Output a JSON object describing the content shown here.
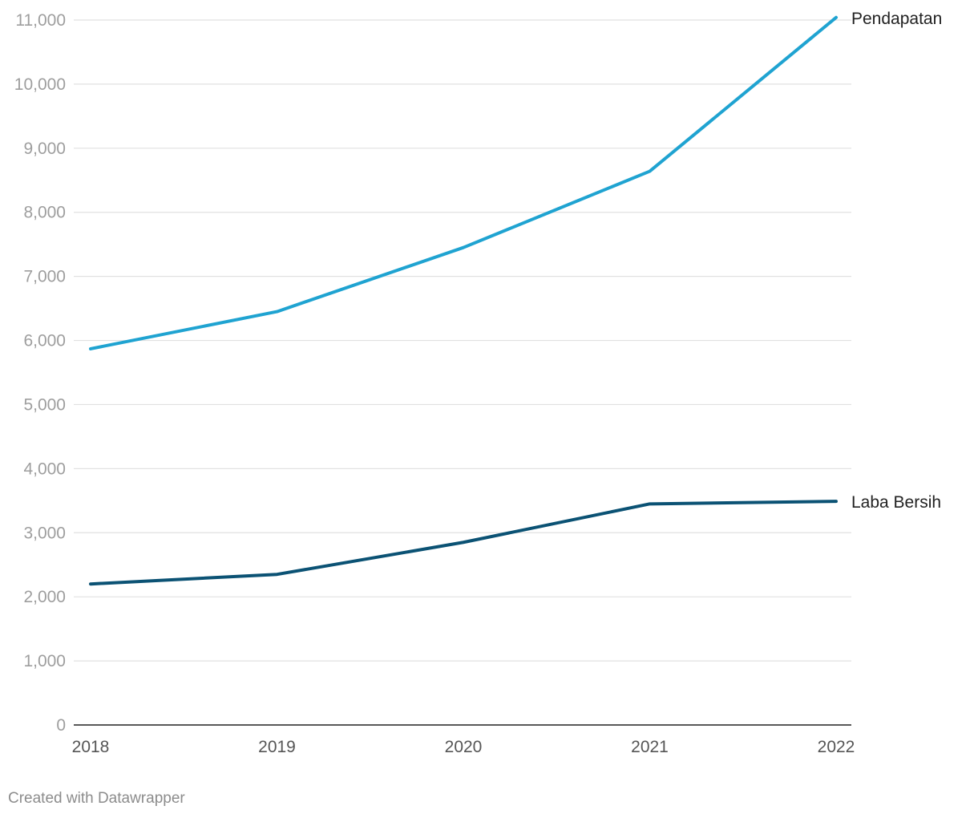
{
  "chart_data": {
    "type": "line",
    "title": "",
    "xlabel": "",
    "ylabel": "",
    "x": [
      "2018",
      "2019",
      "2020",
      "2021",
      "2022"
    ],
    "ylim": [
      0,
      11000
    ],
    "y_ticks": [
      "0",
      "1,000",
      "2,000",
      "3,000",
      "4,000",
      "5,000",
      "6,000",
      "7,000",
      "8,000",
      "9,000",
      "10,000",
      "11,000"
    ],
    "y_tick_values": [
      0,
      1000,
      2000,
      3000,
      4000,
      5000,
      6000,
      7000,
      8000,
      9000,
      10000,
      11000
    ],
    "grid": true,
    "legend": "inline labels at line ends",
    "series": [
      {
        "name": "Pendapatan",
        "color": "#1fa3d1",
        "values": [
          5870,
          6450,
          7450,
          8640,
          11040
        ]
      },
      {
        "name": "Laba Bersih",
        "color": "#0b5274",
        "values": [
          2200,
          2350,
          2850,
          3450,
          3490
        ]
      }
    ]
  },
  "footer": {
    "credit": "Created with Datawrapper"
  }
}
